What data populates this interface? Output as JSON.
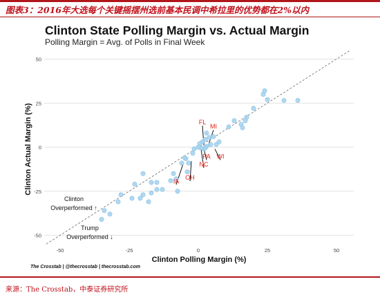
{
  "figure_caption": "图表3：2016年大选每个关键摇摆州选前基本民调中希拉里的优势都在2%以内",
  "source_note": "来源：The Crosstab，中泰证券研究所",
  "credit": "The Crosstab | @thecrosstab | thecrosstab.com",
  "colors": {
    "accent_red": "#c0111b",
    "point_fill": "#a9d3ee",
    "point_stroke": "#8cc3e6",
    "state_label": "#e2231a",
    "diag_line": "#777777",
    "grid": "#d9d9d9"
  },
  "chart_data": {
    "type": "scatter",
    "title": "Clinton State Polling Margin vs. Actual Margin",
    "subtitle": "Polling Margin = Avg. of Polls in Final Week",
    "xlabel": "Clinton Polling Margin (%)",
    "ylabel": "Clinton Actual Margin (%)",
    "xlim": [
      -55,
      55
    ],
    "ylim": [
      -55,
      55
    ],
    "xticks": [
      "-50",
      "-25",
      "0",
      "25",
      "50"
    ],
    "yticks": [
      "50",
      "25",
      "0",
      "-25",
      "-50"
    ],
    "grid": "horizontal",
    "reference_line": "y = x (dashed)",
    "annotations": {
      "clinton": "Clinton\nOverperformed ↑",
      "trump": "Trump\nOverperformed ↓"
    },
    "points": [
      {
        "x": 24,
        "y": 32
      },
      {
        "x": 23.5,
        "y": 30
      },
      {
        "x": 25,
        "y": 27
      },
      {
        "x": 31,
        "y": 26.5
      },
      {
        "x": 36,
        "y": 26.5
      },
      {
        "x": 20,
        "y": 22
      },
      {
        "x": 17.5,
        "y": 17
      },
      {
        "x": 17,
        "y": 15
      },
      {
        "x": 15.5,
        "y": 13
      },
      {
        "x": 16,
        "y": 11
      },
      {
        "x": 13,
        "y": 15
      },
      {
        "x": 11,
        "y": 11.5
      },
      {
        "x": 7.5,
        "y": 3
      },
      {
        "x": 6.5,
        "y": 1.5
      },
      {
        "x": 4.5,
        "y": 1.5
      },
      {
        "x": 4,
        "y": 5.5
      },
      {
        "x": 3,
        "y": 8
      },
      {
        "x": 2.5,
        "y": 4.5
      },
      {
        "x": 5.5,
        "y": 6
      },
      {
        "x": 1.5,
        "y": 3
      },
      {
        "x": 0.5,
        "y": 2
      },
      {
        "x": 3,
        "y": 0.5
      },
      {
        "x": 2,
        "y": -1
      },
      {
        "x": 2.5,
        "y": -0.5
      },
      {
        "x": 1,
        "y": -0.5
      },
      {
        "x": 0,
        "y": 0
      },
      {
        "x": -1.5,
        "y": -1
      },
      {
        "x": -2,
        "y": -3.5
      },
      {
        "x": -4.5,
        "y": -6.5
      },
      {
        "x": -3.5,
        "y": -9
      },
      {
        "x": -6,
        "y": -9
      },
      {
        "x": -4,
        "y": -14
      },
      {
        "x": -8,
        "y": -18
      },
      {
        "x": -10,
        "y": -19
      },
      {
        "x": -15,
        "y": -20
      },
      {
        "x": -17,
        "y": -20
      },
      {
        "x": -20,
        "y": -15
      },
      {
        "x": -23,
        "y": -21
      },
      {
        "x": -17,
        "y": -26
      },
      {
        "x": -20,
        "y": -27
      },
      {
        "x": -21,
        "y": -29
      },
      {
        "x": -18,
        "y": -31
      },
      {
        "x": -24,
        "y": -29
      },
      {
        "x": -28,
        "y": -27
      },
      {
        "x": -29,
        "y": -31
      },
      {
        "x": -34,
        "y": -36
      },
      {
        "x": -32,
        "y": -38
      },
      {
        "x": -35,
        "y": -41
      },
      {
        "x": -15,
        "y": -24
      },
      {
        "x": -7.5,
        "y": -25
      },
      {
        "x": -9,
        "y": -15
      },
      {
        "x": -5,
        "y": -6
      },
      {
        "x": -13,
        "y": -24
      }
    ],
    "state_labels": [
      {
        "label": "FL",
        "x": 1.5,
        "y": 13,
        "px": 2,
        "py": 1
      },
      {
        "label": "MI",
        "x": 5.5,
        "y": 10.5,
        "px": 3.5,
        "py": 0.5
      },
      {
        "label": "PA",
        "x": 3,
        "y": -6.5,
        "px": 2,
        "py": -1
      },
      {
        "label": "WI",
        "x": 8,
        "y": -6.5,
        "px": 6,
        "py": -1
      },
      {
        "label": "NC",
        "x": 2,
        "y": -11,
        "px": 1,
        "py": -1
      },
      {
        "label": "IA",
        "x": -8,
        "y": -20.5,
        "px": -5.5,
        "py": -9.5
      },
      {
        "label": "OH",
        "x": -3,
        "y": -18.5,
        "px": -2.5,
        "py": -8
      }
    ]
  }
}
